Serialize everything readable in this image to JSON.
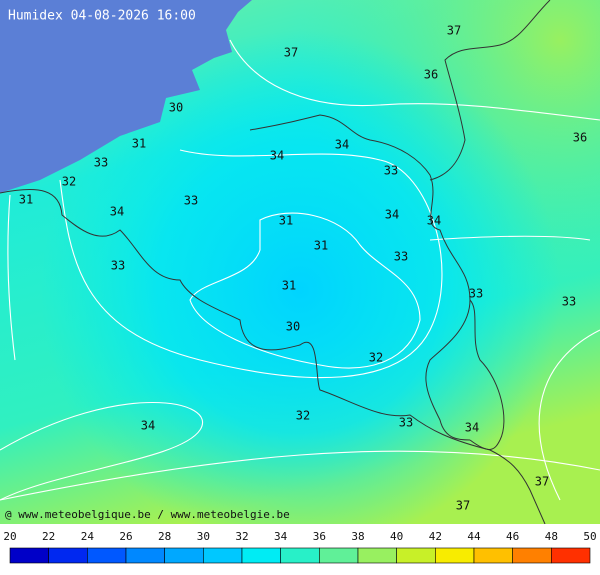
{
  "header": {
    "title": "Humidex 04-08-2026 16:00"
  },
  "map": {
    "labels": [
      37,
      37,
      36,
      36,
      30,
      31,
      33,
      34,
      34,
      33,
      32,
      31,
      34,
      33,
      31,
      34,
      34,
      31,
      33,
      33,
      31,
      33,
      33,
      30,
      32,
      32,
      33,
      34,
      34,
      37,
      37
    ]
  },
  "credit": "@ www.meteobelgique.be / www.meteobelgie.be",
  "legend": {
    "ticks": [
      20,
      22,
      24,
      26,
      28,
      30,
      32,
      34,
      36,
      38,
      40,
      42,
      44,
      46,
      48,
      50
    ],
    "colors": [
      "#0000c8",
      "#0028f0",
      "#0058ff",
      "#0088ff",
      "#00a8ff",
      "#00c8ff",
      "#00ecf4",
      "#28f0c8",
      "#60f098",
      "#98f060",
      "#c8f028",
      "#f8ec00",
      "#ffc000",
      "#ff8000",
      "#ff3000"
    ]
  }
}
